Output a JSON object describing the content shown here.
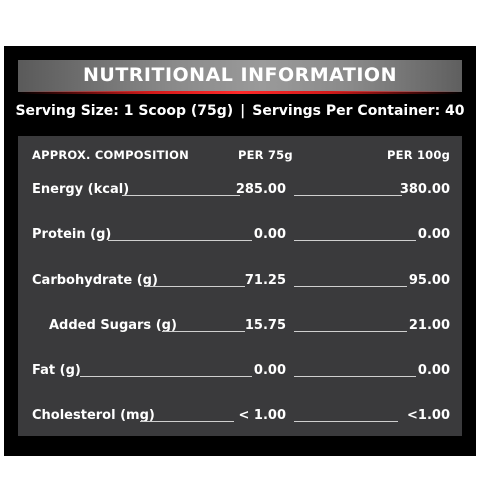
{
  "header": {
    "title": "NUTRITIONAL INFORMATION",
    "serving_size": "Serving Size: 1 Scoop (75g)",
    "separator": "|",
    "servings_per_container": "Servings Per Container: 40"
  },
  "columns": {
    "composition": "APPROX. COMPOSITION",
    "per_serving": "PER 75g",
    "per_100g": "PER 100g"
  },
  "rows": [
    {
      "label": "Energy (kcal)",
      "per_serving": "285.00",
      "per_100g": "380.00"
    },
    {
      "label": "Protein (g)",
      "per_serving": "0.00",
      "per_100g": "0.00"
    },
    {
      "label": "Carbohydrate (g)",
      "per_serving": "71.25",
      "per_100g": "95.00"
    },
    {
      "label": "Added Sugars (g)",
      "per_serving": "15.75",
      "per_100g": "21.00"
    },
    {
      "label": "Fat (g)",
      "per_serving": "0.00",
      "per_100g": "0.00"
    },
    {
      "label": "Cholesterol (mg)",
      "per_serving": "< 1.00",
      "per_100g": "<1.00"
    }
  ],
  "colors": {
    "panel_bg": "#000000",
    "table_bg": "#3a3a3c",
    "header_bar": "#8a8a8a",
    "accent_line": "#ff2a2a",
    "text": "#ffffff"
  }
}
